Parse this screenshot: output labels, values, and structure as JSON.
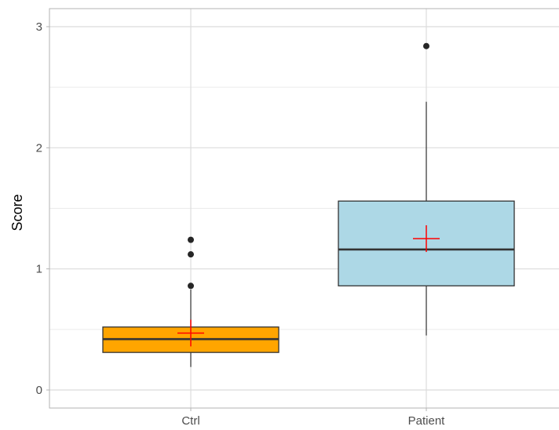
{
  "chart_data": {
    "type": "box",
    "title": "",
    "xlabel": "",
    "ylabel": "Score",
    "ylim": [
      -0.15,
      3.15
    ],
    "y_ticks": [
      0,
      1,
      2,
      3
    ],
    "grid": true,
    "legend": "none",
    "categories": [
      "Ctrl",
      "Patient"
    ],
    "boxes": [
      {
        "category": "Ctrl",
        "whisker_low": 0.19,
        "q1": 0.31,
        "median": 0.42,
        "q3": 0.52,
        "whisker_high": 0.83,
        "mean": 0.47,
        "outliers": [
          0.86,
          1.12,
          1.24
        ],
        "fill": "#FFA500"
      },
      {
        "category": "Patient",
        "whisker_low": 0.45,
        "q1": 0.86,
        "median": 1.16,
        "q3": 1.56,
        "whisker_high": 2.38,
        "mean": 1.25,
        "outliers": [
          2.84
        ],
        "fill": "#ADD8E6"
      }
    ],
    "mean_marker": {
      "shape": "cross",
      "color": "#FF0000"
    },
    "colors": {
      "panel_border": "#b3b3b3",
      "grid_major": "#dcdcdc",
      "grid_minor": "#ebebeb",
      "box_line": "#333333",
      "point": "#262626"
    }
  }
}
